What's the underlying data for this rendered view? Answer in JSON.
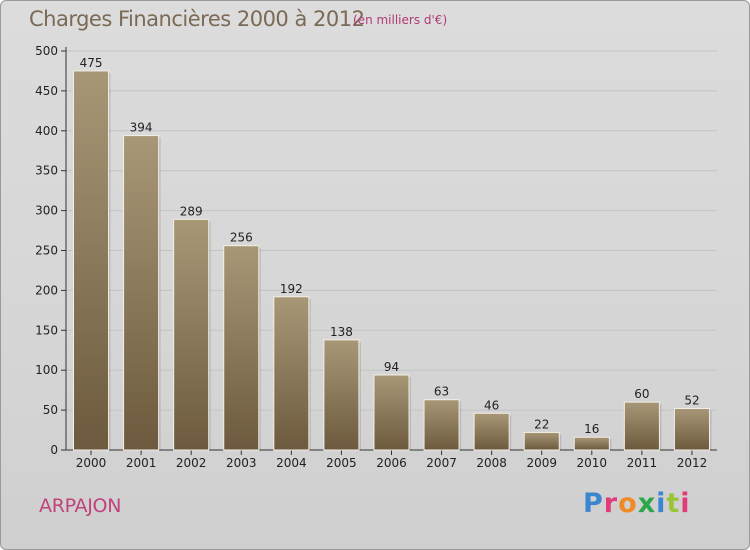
{
  "header": {
    "title": "Charges Financières 2000 à 2012",
    "subtitle": "(en milliers d'€)"
  },
  "footer": {
    "city": "ARPAJON",
    "logo_text": "Proxiti",
    "logo_colors": [
      "#3a86d0",
      "#e23b7a",
      "#f08a24",
      "#2aa84a",
      "#3a86d0",
      "#9bc43a",
      "#e23b7a"
    ]
  },
  "colors": {
    "bar_top": "#a89777",
    "bar_bottom": "#6d5a3e",
    "grid": "#c4c4c4"
  },
  "chart_data": {
    "type": "bar",
    "title": "Charges Financières 2000 à 2012",
    "subtitle": "(en milliers d'€)",
    "categories": [
      "2000",
      "2001",
      "2002",
      "2003",
      "2004",
      "2005",
      "2006",
      "2007",
      "2008",
      "2009",
      "2010",
      "2011",
      "2012"
    ],
    "values": [
      475,
      394,
      289,
      256,
      192,
      138,
      94,
      63,
      46,
      22,
      16,
      60,
      52
    ],
    "ylim": [
      0,
      500
    ],
    "yticks": [
      0,
      50,
      100,
      150,
      200,
      250,
      300,
      350,
      400,
      450,
      500
    ],
    "grid": true,
    "data_labels": true
  }
}
